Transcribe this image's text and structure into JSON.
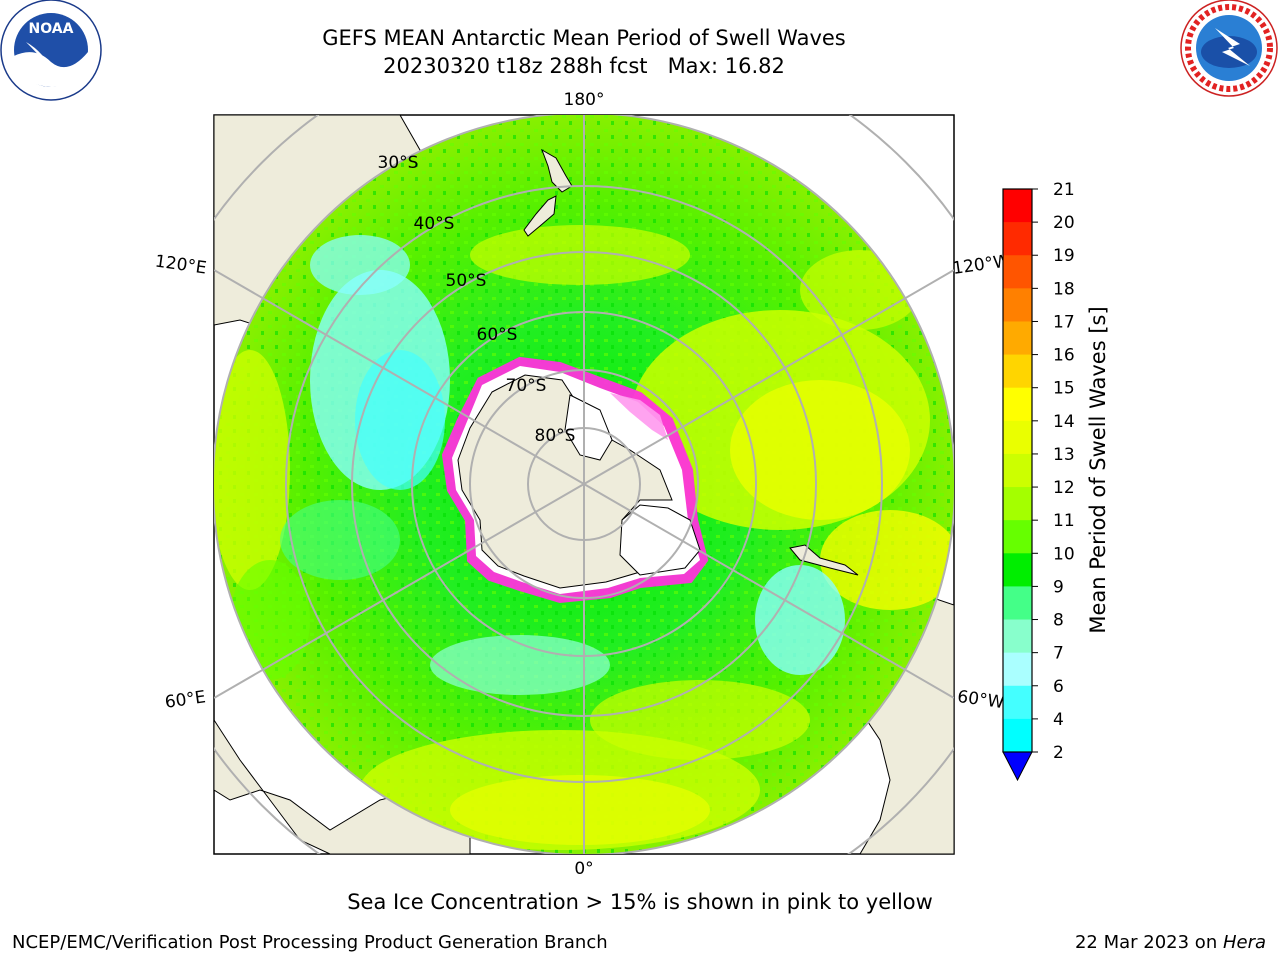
{
  "header": {
    "title_line1": "GEFS MEAN Antarctic Mean Period of Swell Waves",
    "title_line2": "20230320 t18z 288h fcst   Max: 16.82"
  },
  "logos": {
    "left": {
      "icon": "noaa-logo",
      "text": "NOAA",
      "ring_text": "NATIONAL OCEANIC AND ATMOSPHERIC ADMINISTRATION · U.S. DEPARTMENT OF COMMERCE"
    },
    "right": {
      "icon": "nws-logo",
      "ring_text": "NATIONAL WEATHER SERVICE"
    }
  },
  "map": {
    "projection": "south polar stereographic",
    "longitude_labels": {
      "top": "180°",
      "bottom": "0°",
      "upper_left": "120°E",
      "upper_right": "120°W",
      "lower_left": "60°E",
      "lower_right": "60°W"
    },
    "latitude_labels": [
      "30°S",
      "40°S",
      "50°S",
      "60°S",
      "70°S",
      "80°S"
    ],
    "colors": {
      "land": "#eeecdb",
      "ice_edge": "#ff33dd",
      "ice_inner": "#ffffff",
      "gridline": "#b0b0b0"
    }
  },
  "colorbar": {
    "label": "Mean Period of Swell Waves [s]",
    "ticks": [
      "21",
      "20",
      "19",
      "18",
      "17",
      "16",
      "15",
      "14",
      "13",
      "12",
      "11",
      "10",
      "9",
      "8",
      "7",
      "6",
      "4",
      "2"
    ],
    "extend": "min",
    "bands": [
      "#ff0000",
      "#ff2a00",
      "#ff5500",
      "#ff8000",
      "#ffaa00",
      "#ffd500",
      "#ffff00",
      "#eaff00",
      "#ccff00",
      "#a4ff00",
      "#66ff00",
      "#00ee00",
      "#44ff88",
      "#88ffcc",
      "#aaffff",
      "#44ffff",
      "#00ffff",
      "#00ccff",
      "#0077ff"
    ],
    "under_color": "#0000ff"
  },
  "footer": {
    "note": "Sea Ice Concentration > 15% is shown in pink to yellow",
    "credit_left": "NCEP/EMC/Verification Post Processing Product Generation Branch",
    "credit_right_date": "22 Mar 2023 on ",
    "credit_right_host": "Hera"
  }
}
